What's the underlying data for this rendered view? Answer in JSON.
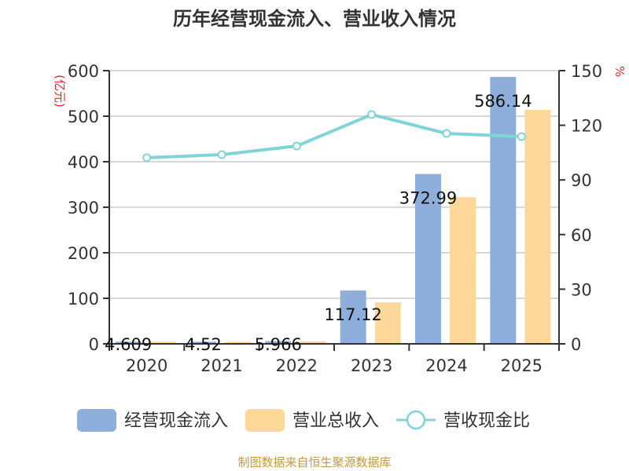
{
  "title": "历年经营现金流入、营业收入情况",
  "footer": "制图数据来自恒生聚源数据库",
  "colors": {
    "cash_inflow": "#8eaedb",
    "revenue": "#fed89a",
    "ratio_line": "#80d4d8",
    "axis": "#333333",
    "grid": "#cccccc",
    "unit_label": "#e8242b",
    "footer": "#c29a3c"
  },
  "legend": [
    {
      "label": "经营现金流入",
      "type": "bar",
      "color": "#8eaedb"
    },
    {
      "label": "营业总收入",
      "type": "bar",
      "color": "#fed89a"
    },
    {
      "label": "营收现金比",
      "type": "line",
      "color": "#80d4d8"
    }
  ],
  "chart_data": {
    "type": "bar",
    "title": "历年经营现金流入、营业收入情况",
    "categories": [
      "2020",
      "2021",
      "2022",
      "2023",
      "2024",
      "2025"
    ],
    "series": [
      {
        "name": "经营现金流入",
        "type": "bar",
        "axis": "left",
        "values": [
          4.609,
          4.52,
          5.966,
          117.12,
          372.99,
          586.14
        ],
        "labels": [
          "4.609",
          "4.52",
          "5.966",
          "117.12",
          "372.99",
          "586.14"
        ]
      },
      {
        "name": "营业总收入",
        "type": "bar",
        "axis": "left",
        "values": [
          4.5,
          4.3,
          5.5,
          91,
          322,
          514
        ]
      },
      {
        "name": "营收现金比",
        "type": "line",
        "axis": "right",
        "values": [
          102.2,
          103.9,
          108.6,
          125.9,
          115.5,
          113.8
        ]
      }
    ],
    "ylabel": "(亿元)",
    "ylabel_right": "%",
    "ylim": [
      0,
      600
    ],
    "ylim_right": [
      0,
      150
    ],
    "yticks": [
      0,
      100,
      200,
      300,
      400,
      500,
      600
    ],
    "yticks_right": [
      0,
      30,
      60,
      90,
      120,
      150
    ],
    "grid": true,
    "legend_position": "bottom"
  }
}
